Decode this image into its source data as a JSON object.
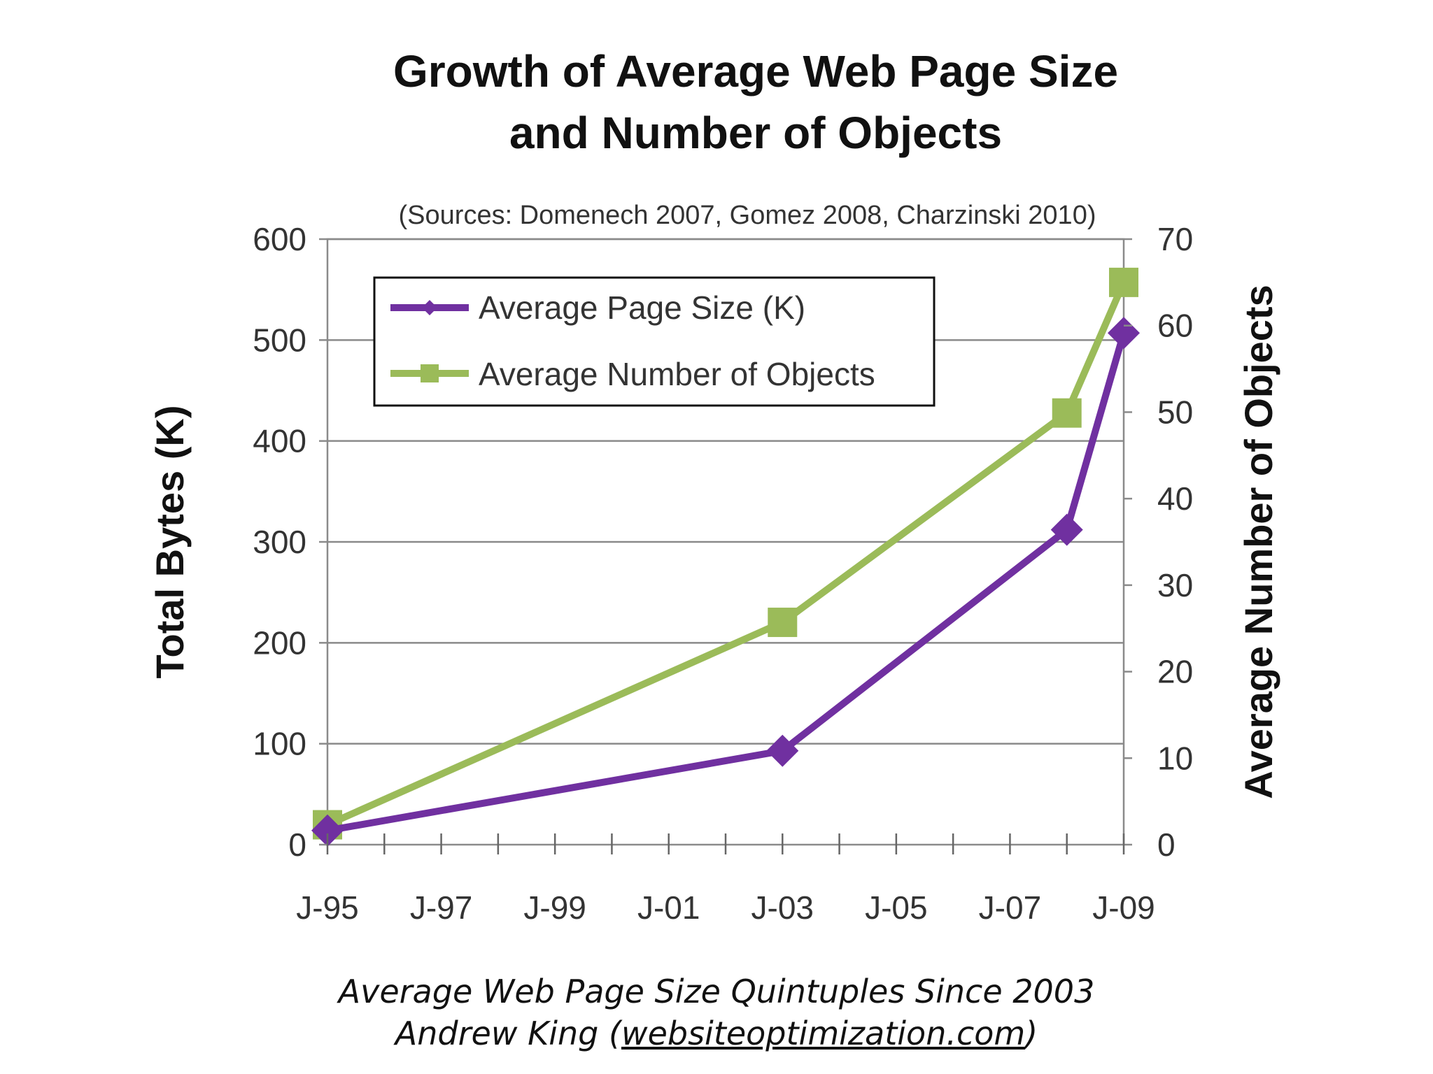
{
  "chart_data": {
    "type": "line",
    "title_lines": [
      "Growth of Average Web Page Size",
      "and Number of Objects"
    ],
    "subtitle": "(Sources: Domenech 2007, Gomez 2008, Charzinski 2010)",
    "xlabel": "",
    "x_tick_labels": [
      "J-95",
      "J-97",
      "J-99",
      "J-01",
      "J-03",
      "J-05",
      "J-07",
      "J-09"
    ],
    "xlim": [
      "1995-01",
      "2009-01"
    ],
    "ylabel": "Total Bytes (K)",
    "ylim": [
      0,
      600
    ],
    "y_ticks": [
      0,
      100,
      200,
      300,
      400,
      500,
      600
    ],
    "y2label": "Average Number of Objects",
    "y2lim": [
      0,
      70
    ],
    "y2_ticks": [
      0,
      10,
      20,
      30,
      40,
      50,
      60,
      70
    ],
    "grid": true,
    "legend_position": "top-left",
    "series": [
      {
        "name": "Average Page Size (K)",
        "axis": "left",
        "color": "#7030a0",
        "marker": "diamond",
        "x": [
          "1995-01",
          "2003-01",
          "2008-01",
          "2009-01"
        ],
        "y": [
          14,
          93,
          312,
          507
        ]
      },
      {
        "name": "Average Number of Objects",
        "axis": "right",
        "color": "#9bbb59",
        "marker": "square",
        "x": [
          "1995-01",
          "2003-01",
          "2008-01",
          "2009-01"
        ],
        "y": [
          2.3,
          25.7,
          49.9,
          65.0
        ]
      }
    ]
  },
  "caption": {
    "line1": "Average Web Page Size Quintuples Since 2003",
    "line2_prefix": "Andrew King (",
    "line2_link": "websiteoptimization.com",
    "line2_suffix": ")"
  }
}
